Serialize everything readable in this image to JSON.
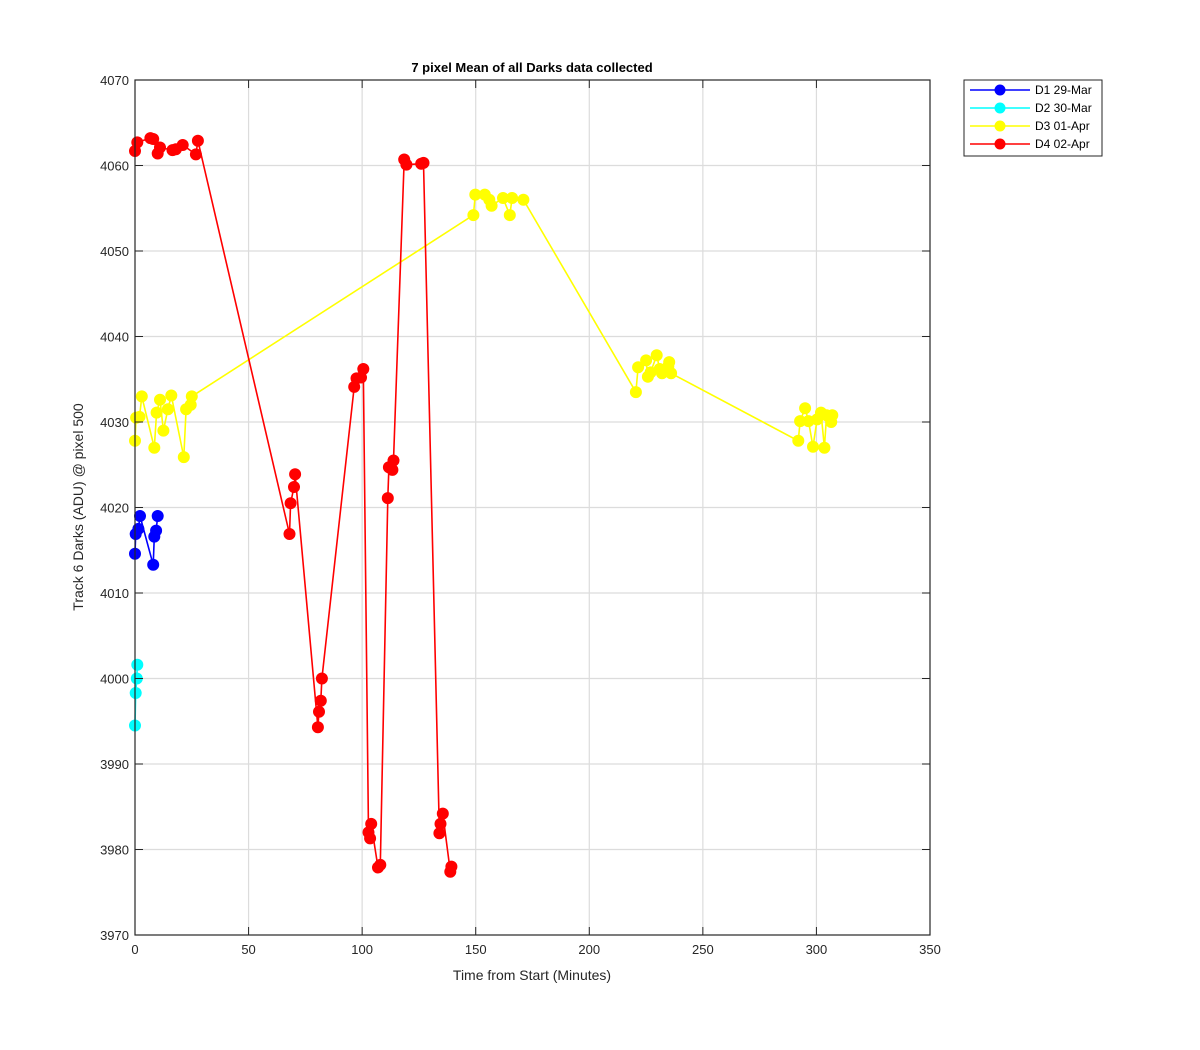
{
  "chart_data": {
    "type": "line",
    "title": "7 pixel Mean of all Darks data collected",
    "xlabel": "Time from Start (Minutes)",
    "ylabel": "Track 6 Darks (ADU) @ pixel 500",
    "xlim": [
      0,
      350
    ],
    "ylim": [
      3970,
      4070
    ],
    "xticks": [
      0,
      50,
      100,
      150,
      200,
      250,
      300,
      350
    ],
    "yticks": [
      3970,
      3980,
      3990,
      4000,
      4010,
      4020,
      4030,
      4040,
      4050,
      4060,
      4070
    ],
    "grid": true,
    "legend_position": "outside-top-right",
    "series": [
      {
        "name": "D1 29-Mar",
        "color": "#0000ff",
        "points": [
          [
            0,
            4014.6
          ],
          [
            0.3,
            4016.9
          ],
          [
            1.5,
            4017.5
          ],
          [
            2.2,
            4019
          ],
          [
            8,
            4013.3
          ],
          [
            8.5,
            4016.6
          ],
          [
            9.3,
            4017.3
          ],
          [
            10,
            4019
          ]
        ]
      },
      {
        "name": "D2 30-Mar",
        "color": "#00ffff",
        "points": [
          [
            0,
            3994.5
          ],
          [
            0.3,
            3998.3
          ],
          [
            0.8,
            4000
          ],
          [
            1,
            4001.6
          ]
        ]
      },
      {
        "name": "D3 01-Apr",
        "color": "#ffff00",
        "points": [
          [
            0,
            4027.8
          ],
          [
            0.5,
            4030.5
          ],
          [
            2,
            4030.6
          ],
          [
            3,
            4033
          ],
          [
            8.5,
            4027
          ],
          [
            9.5,
            4031.1
          ],
          [
            11,
            4032.6
          ],
          [
            12.5,
            4029
          ],
          [
            14.5,
            4031.5
          ],
          [
            16,
            4033.1
          ],
          [
            21.5,
            4025.9
          ],
          [
            22.5,
            4031.5
          ],
          [
            24.5,
            4032
          ],
          [
            25,
            4033
          ],
          [
            149,
            4054.2
          ],
          [
            149.8,
            4056.6
          ],
          [
            154,
            4056.6
          ],
          [
            156,
            4056
          ],
          [
            157,
            4055.3
          ],
          [
            162,
            4056.2
          ],
          [
            165,
            4054.2
          ],
          [
            166,
            4056.2
          ],
          [
            171,
            4056
          ],
          [
            220.5,
            4033.5
          ],
          [
            221.5,
            4036.4
          ],
          [
            225,
            4037.2
          ],
          [
            225.8,
            4035.3
          ],
          [
            227,
            4035.8
          ],
          [
            229.7,
            4037.8
          ],
          [
            231,
            4036.2
          ],
          [
            232,
            4035.7
          ],
          [
            234.8,
            4036.5
          ],
          [
            235.2,
            4037
          ],
          [
            236,
            4035.7
          ],
          [
            292,
            4027.8
          ],
          [
            292.8,
            4030.1
          ],
          [
            295,
            4031.6
          ],
          [
            296.5,
            4030.1
          ],
          [
            298.5,
            4027.1
          ],
          [
            300.3,
            4030.3
          ],
          [
            302,
            4031.1
          ],
          [
            303.5,
            4027
          ],
          [
            304.5,
            4030.8
          ],
          [
            306.5,
            4030
          ],
          [
            307,
            4030.8
          ]
        ]
      },
      {
        "name": "D4 02-Apr",
        "color": "#ff0000",
        "points": [
          [
            0,
            4061.7
          ],
          [
            1,
            4062.7
          ],
          [
            6.8,
            4063.2
          ],
          [
            8,
            4063.1
          ],
          [
            10,
            4061.4
          ],
          [
            11,
            4062.1
          ],
          [
            16.5,
            4061.8
          ],
          [
            18,
            4061.9
          ],
          [
            21,
            4062.4
          ],
          [
            26.8,
            4061.3
          ],
          [
            27.7,
            4062.9
          ],
          [
            68,
            4016.9
          ],
          [
            68.5,
            4020.5
          ],
          [
            70,
            4022.4
          ],
          [
            70.5,
            4023.9
          ],
          [
            80.5,
            3994.3
          ],
          [
            81,
            3996.1
          ],
          [
            81.8,
            3997.4
          ],
          [
            82.3,
            4000
          ],
          [
            96.5,
            4034.1
          ],
          [
            97.5,
            4035.1
          ],
          [
            99.5,
            4035.2
          ],
          [
            100.5,
            4036.2
          ],
          [
            102.8,
            3982
          ],
          [
            103.5,
            3981.3
          ],
          [
            104,
            3983
          ],
          [
            107,
            3977.9
          ],
          [
            108,
            3978.2
          ],
          [
            111.3,
            4021.1
          ],
          [
            111.8,
            4024.7
          ],
          [
            113.3,
            4024.4
          ],
          [
            113.8,
            4025.5
          ],
          [
            118.5,
            4060.7
          ],
          [
            119.5,
            4060.1
          ],
          [
            126,
            4060.2
          ],
          [
            127,
            4060.3
          ],
          [
            134,
            3981.9
          ],
          [
            134.5,
            3983
          ],
          [
            135.5,
            3984.2
          ],
          [
            138.8,
            3977.4
          ],
          [
            139.3,
            3978
          ]
        ]
      }
    ]
  }
}
